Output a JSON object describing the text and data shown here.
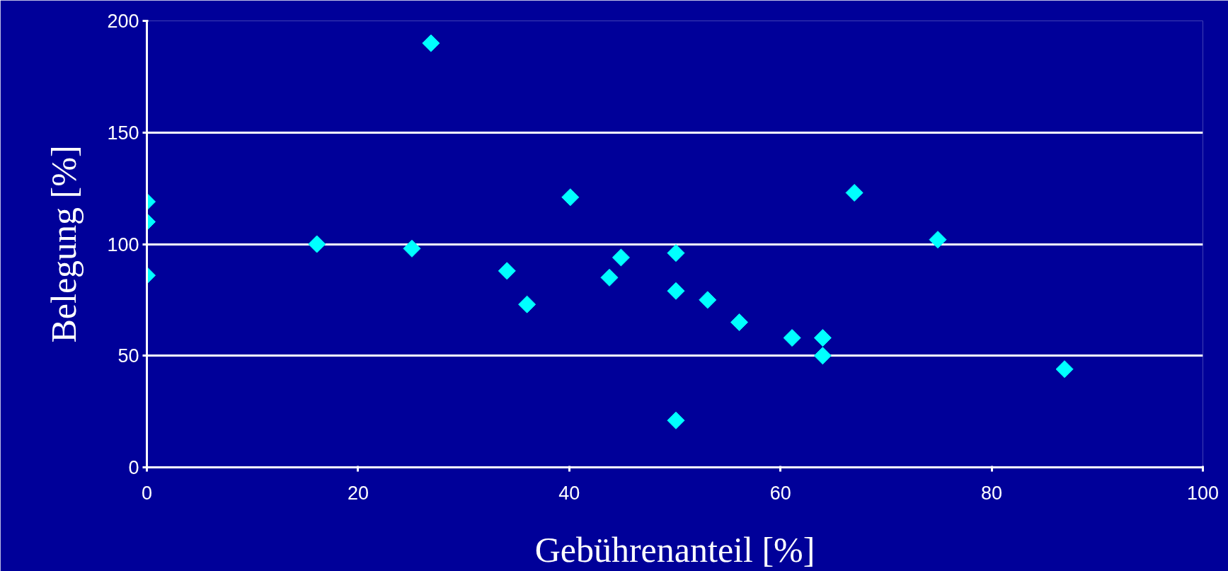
{
  "chart_data": {
    "type": "scatter",
    "xlabel": "Gebührenanteil [%]",
    "ylabel": "Belegung [%]",
    "x": [
      0,
      0,
      0,
      16.1,
      25.1,
      26.9,
      34.1,
      36,
      40.1,
      43.8,
      44.9,
      50.1,
      50.1,
      50.1,
      53.1,
      56.1,
      61.1,
      64,
      64,
      67,
      74.9,
      86.9
    ],
    "series": [
      {
        "color": "#00ffff",
        "values": [
          119,
          110,
          86,
          100,
          98,
          190,
          88,
          73,
          121,
          85,
          94,
          96,
          79,
          21,
          75,
          65,
          58,
          58,
          50,
          123,
          102,
          44
        ]
      }
    ],
    "xlim": [
      0,
      100
    ],
    "xticks": [
      0,
      20,
      40,
      60,
      80,
      100
    ],
    "ylim": [
      0,
      200
    ],
    "yticks": [
      0,
      50,
      100,
      150,
      200
    ],
    "grid": "y",
    "marker": "diamond"
  }
}
